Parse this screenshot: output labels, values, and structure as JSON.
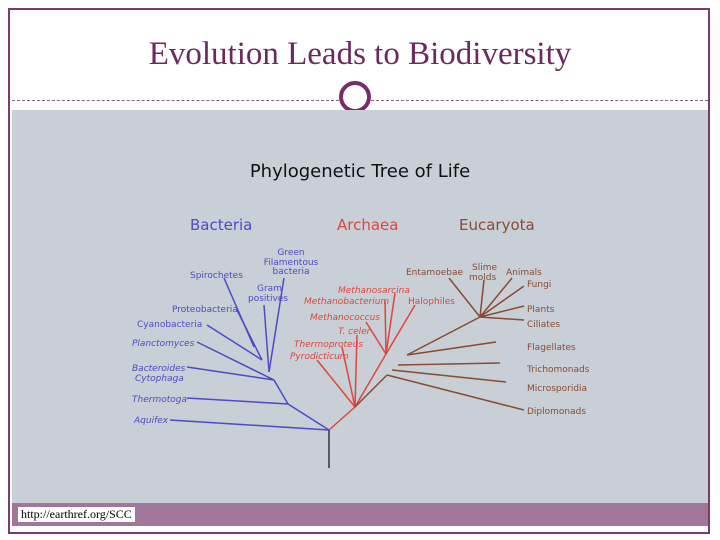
{
  "slide": {
    "title": "Evolution Leads to Biodiversity",
    "source": "http://earthref.org/SCC"
  },
  "diagram": {
    "title": "Phylogenetic Tree of Life",
    "colors": {
      "bacteria": "#5148c8",
      "archaea": "#e0453a",
      "eucaryota": "#8b4a32",
      "root": "#333333"
    },
    "domains": {
      "bacteria": "Bacteria",
      "archaea": "Archaea",
      "eucaryota": "Eucaryota"
    },
    "bacteria_labels": {
      "green_filamentous_1": "Green",
      "green_filamentous_2": "Filamentous",
      "green_filamentous_3": "bacteria",
      "spirochetes": "Spirochetes",
      "gram_1": "Gram",
      "gram_2": "positives",
      "proteobacteria": "Proteobacteria",
      "cyanobacteria": "Cyanobacteria",
      "planctomyces": "Planctomyces",
      "bacteroides_1": "Bacteroides",
      "bacteroides_2": "Cytophaga",
      "thermotoga": "Thermotoga",
      "aquifex": "Aquifex"
    },
    "archaea_labels": {
      "methanosarcina": "Methanosarcina",
      "methanobacterium": "Methanobacterium",
      "halophiles": "Halophiles",
      "methanococcus": "Methanococcus",
      "t_celer": "T. celer",
      "thermoproteus": "Thermoproteus",
      "pyrodicticum": "Pyrodicticum"
    },
    "eucaryota_labels": {
      "entamoebae": "Entamoebae",
      "slime_1": "Slime",
      "slime_2": "molds",
      "animals": "Animals",
      "fungi": "Fungi",
      "plants": "Plants",
      "ciliates": "Ciliates",
      "flagellates": "Flagellates",
      "trichomonads": "Trichomonads",
      "microsporidia": "Microsporidia",
      "diplomonads": "Diplomonads"
    }
  }
}
